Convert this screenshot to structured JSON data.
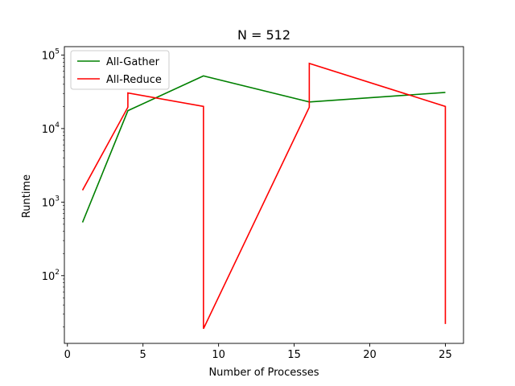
{
  "chart_data": {
    "type": "line",
    "title": "N = 512",
    "xlabel": "Number of Processes",
    "ylabel": "Runtime",
    "yscale": "log",
    "xlim": [
      -0.2,
      26.2
    ],
    "ylim": [
      12,
      130000
    ],
    "xticks": [
      0,
      5,
      10,
      15,
      20,
      25
    ],
    "xtick_labels": [
      "0",
      "5",
      "10",
      "15",
      "20",
      "25"
    ],
    "yticks": [
      100,
      1000,
      10000,
      100000
    ],
    "ytick_labels": [
      {
        "base": "10",
        "exp": "2"
      },
      {
        "base": "10",
        "exp": "3"
      },
      {
        "base": "10",
        "exp": "4"
      },
      {
        "base": "10",
        "exp": "5"
      }
    ],
    "grid": false,
    "legend_position": "top-left",
    "series": [
      {
        "name": "All-Gather",
        "color": "#008000",
        "x": [
          1,
          4,
          9,
          16,
          25
        ],
        "y": [
          530,
          17500,
          52000,
          23000,
          31000
        ]
      },
      {
        "name": "All-Reduce",
        "color": "#ff0000",
        "x": [
          1,
          4,
          4,
          9,
          9,
          16,
          16,
          25,
          25
        ],
        "y": [
          1450,
          19500,
          30500,
          20000,
          19,
          19500,
          77000,
          20000,
          22
        ]
      }
    ]
  }
}
